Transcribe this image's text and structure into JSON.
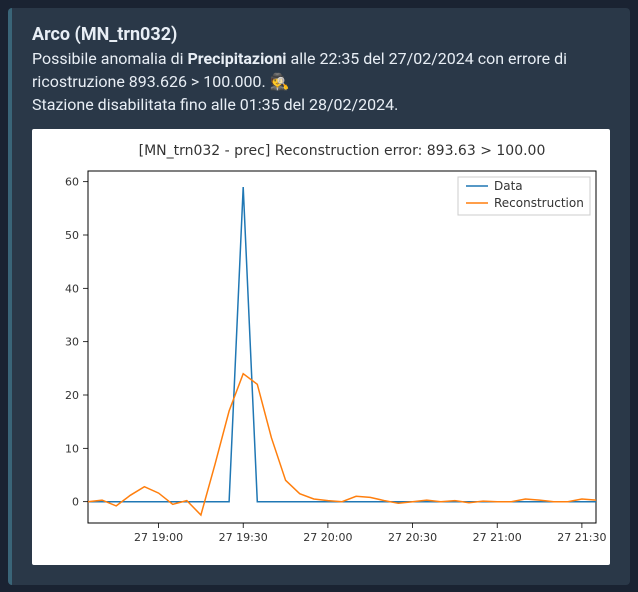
{
  "header": {
    "station_title": "Arco (MN_trn032)",
    "line1_pre": "Possibile anomalia di ",
    "line1_bold": "Precipitazioni",
    "line1_post": " alle 22:35 del 27/02/2024 con errore di ricostruzione 893.626 > 100.000. ",
    "emoji": "🕵️",
    "line2": "Stazione disabilitata fino alle 01:35 del 28/02/2024."
  },
  "chart": {
    "type": "line",
    "title": "[MN_trn032 - prec] Reconstruction error: 893.63 > 100.00",
    "title_fontsize": 14,
    "background_color": "#ffffff",
    "plot_bg": "#ffffff",
    "frame_color": "#000000",
    "ylim": [
      -4,
      62
    ],
    "yticks": [
      0,
      10,
      20,
      30,
      40,
      50,
      60
    ],
    "xticks": [
      {
        "x": 5,
        "label": "27 19:00"
      },
      {
        "x": 11,
        "label": "27 19:30"
      },
      {
        "x": 17,
        "label": "27 20:00"
      },
      {
        "x": 23,
        "label": "27 20:30"
      },
      {
        "x": 29,
        "label": "27 21:00"
      },
      {
        "x": 35,
        "label": "27 21:30"
      }
    ],
    "legend": {
      "position": "upper-right",
      "items": [
        {
          "label": "Data",
          "color": "#1f77b4"
        },
        {
          "label": "Reconstruction",
          "color": "#ff7f0e"
        }
      ]
    },
    "series": {
      "data": {
        "color": "#1f77b4",
        "line_width": 1.5,
        "y": [
          0,
          0,
          0,
          0,
          0,
          0,
          0,
          0,
          0,
          0,
          0,
          59,
          0,
          0,
          0,
          0,
          0,
          0,
          0,
          0,
          0,
          0,
          0,
          0,
          0,
          0,
          0,
          0,
          0,
          0,
          0,
          0,
          0,
          0,
          0,
          0,
          0
        ]
      },
      "reconstruction": {
        "color": "#ff7f0e",
        "line_width": 1.5,
        "y": [
          0,
          0.3,
          -0.8,
          1.2,
          2.8,
          1.6,
          -0.5,
          0.2,
          -2.5,
          7,
          17,
          24,
          22,
          12,
          4,
          1.5,
          0.5,
          0.2,
          0,
          1,
          0.8,
          0.2,
          -0.3,
          0,
          0.3,
          0,
          0.2,
          -0.2,
          0.1,
          0,
          0,
          0.5,
          0.3,
          0,
          0,
          0.5,
          0.3
        ]
      }
    },
    "x_count": 37
  }
}
